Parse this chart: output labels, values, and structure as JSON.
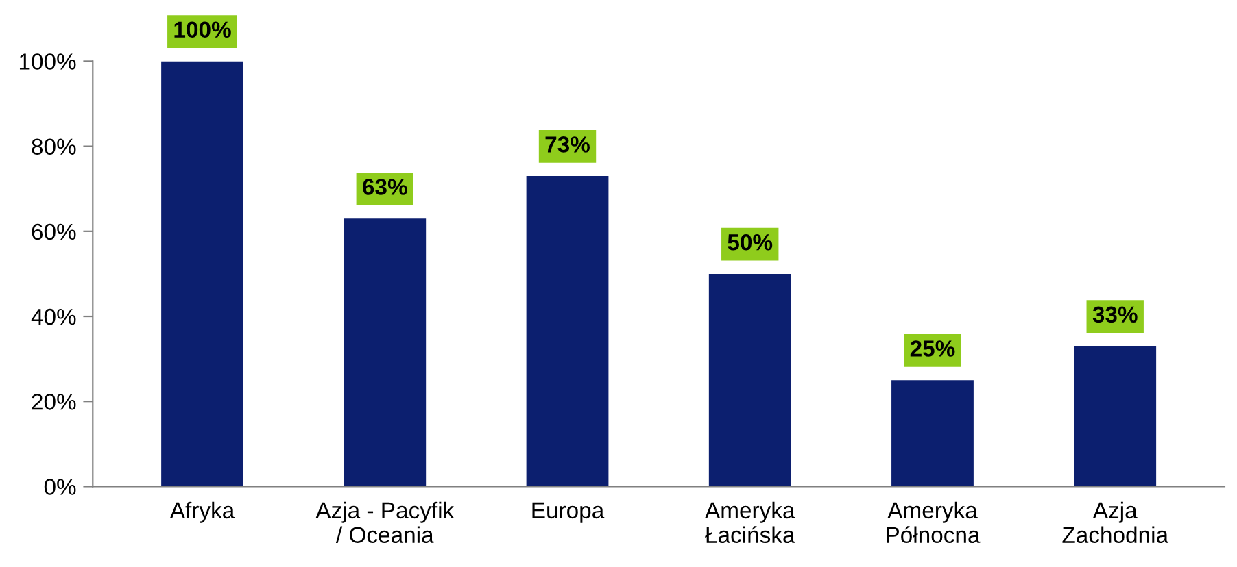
{
  "chart_data": {
    "type": "bar",
    "categories": [
      "Afryka",
      "Azja - Pacyfik\n/ Oceania",
      "Europa",
      "Ameryka\nŁacińska",
      "Ameryka\nPółnocna",
      "Azja\nZachodnia"
    ],
    "values": [
      100,
      63,
      73,
      50,
      25,
      33
    ],
    "color": "#0c1f6f",
    "value_labels": [
      "100%",
      "63%",
      "73%",
      "50%",
      "25%",
      "33%"
    ],
    "ylim": [
      0,
      100
    ],
    "yticks": [
      {
        "value": 0,
        "label": "0%"
      },
      {
        "value": 20,
        "label": "20%"
      },
      {
        "value": 40,
        "label": "40%"
      },
      {
        "value": 60,
        "label": "60%"
      },
      {
        "value": 80,
        "label": "80%"
      },
      {
        "value": 100,
        "label": "100%"
      }
    ],
    "grid": false,
    "legend": false
  }
}
